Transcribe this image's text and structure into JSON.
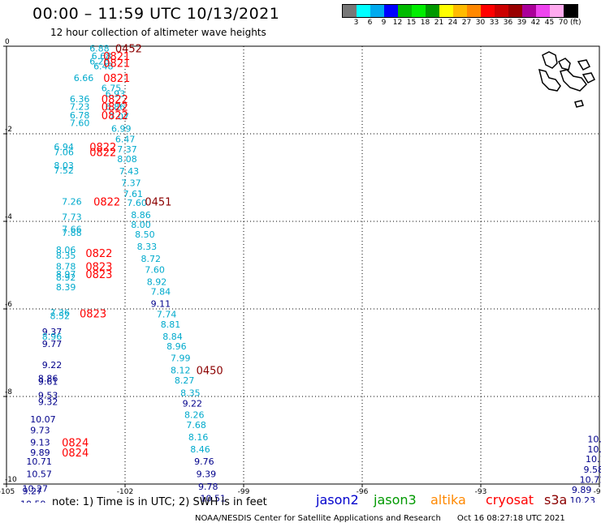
{
  "header": {
    "title": "00:00 – 11:59 UTC 10/13/2021",
    "subtitle": "12 hour collection of altimeter wave heights"
  },
  "scale": {
    "colors": [
      "#777777",
      "#00ffff",
      "#00aaee",
      "#0000ff",
      "#00bb00",
      "#00ee00",
      "#009900",
      "#ffff00",
      "#ffbb00",
      "#ff8800",
      "#ff0000",
      "#cc0000",
      "#990000",
      "#aa0099",
      "#ee44ee",
      "#ffaaee",
      "#000000"
    ],
    "labels": [
      "3",
      "6",
      "9",
      "12",
      "15",
      "18",
      "21",
      "24",
      "27",
      "30",
      "33",
      "36",
      "39",
      "42",
      "45",
      "70"
    ],
    "unit": "(ft)"
  },
  "chart_data": {
    "type": "scatter",
    "xlim": [
      -105,
      -90
    ],
    "ylim": [
      -10,
      0
    ],
    "x_ticks": [
      "-105",
      "-102",
      "-99",
      "-96",
      "-93",
      "-90"
    ],
    "y_ticks": [
      "0",
      "-2",
      "-4",
      "-6",
      "-8",
      "-10"
    ],
    "grid": true,
    "colors": {
      "jason2": "#00008b",
      "jason3": "#00aa00",
      "altika": "#ff8800",
      "cryosat": "#ff0000",
      "s3a": "#8b0000",
      "cyan": "#00aacc"
    },
    "swh_points": [
      {
        "lon": -102.9,
        "lat": -0.05,
        "v": "6.88",
        "c": "cyan"
      },
      {
        "lon": -102.85,
        "lat": -0.22,
        "v": "6.68",
        "c": "cyan"
      },
      {
        "lon": -102.9,
        "lat": -0.34,
        "v": "6.26",
        "c": "cyan"
      },
      {
        "lon": -102.8,
        "lat": -0.45,
        "v": "6.48",
        "c": "cyan"
      },
      {
        "lon": -103.3,
        "lat": -0.72,
        "v": "6.66",
        "c": "cyan"
      },
      {
        "lon": -102.6,
        "lat": -0.95,
        "v": "6.75",
        "c": "cyan"
      },
      {
        "lon": -103.4,
        "lat": -1.2,
        "v": "6.36",
        "c": "cyan"
      },
      {
        "lon": -102.5,
        "lat": -1.08,
        "v": "6.93",
        "c": "cyan"
      },
      {
        "lon": -103.4,
        "lat": -1.38,
        "v": "7.23",
        "c": "cyan"
      },
      {
        "lon": -103.4,
        "lat": -1.57,
        "v": "6.78",
        "c": "cyan"
      },
      {
        "lon": -102.5,
        "lat": -1.38,
        "v": "6.86",
        "c": "cyan"
      },
      {
        "lon": -102.4,
        "lat": -1.6,
        "v": "7.07",
        "c": "cyan"
      },
      {
        "lon": -103.4,
        "lat": -1.75,
        "v": "7.60",
        "c": "cyan"
      },
      {
        "lon": -102.35,
        "lat": -1.88,
        "v": "6.99",
        "c": "cyan"
      },
      {
        "lon": -102.25,
        "lat": -2.12,
        "v": "6.47",
        "c": "cyan"
      },
      {
        "lon": -103.8,
        "lat": -2.3,
        "v": "6.94",
        "c": "cyan"
      },
      {
        "lon": -103.8,
        "lat": -2.42,
        "v": "7.06",
        "c": "cyan"
      },
      {
        "lon": -102.2,
        "lat": -2.35,
        "v": "7.37",
        "c": "cyan"
      },
      {
        "lon": -102.2,
        "lat": -2.57,
        "v": "8.08",
        "c": "cyan"
      },
      {
        "lon": -103.8,
        "lat": -2.72,
        "v": "8.03",
        "c": "cyan"
      },
      {
        "lon": -103.8,
        "lat": -2.83,
        "v": "7.52",
        "c": "cyan"
      },
      {
        "lon": -102.15,
        "lat": -2.85,
        "v": "7.43",
        "c": "cyan"
      },
      {
        "lon": -102.1,
        "lat": -3.12,
        "v": "7.37",
        "c": "cyan"
      },
      {
        "lon": -102.05,
        "lat": -3.37,
        "v": "7.61",
        "c": "cyan"
      },
      {
        "lon": -103.6,
        "lat": -3.55,
        "v": "7.26",
        "c": "cyan"
      },
      {
        "lon": -101.95,
        "lat": -3.57,
        "v": "7.60",
        "c": "cyan"
      },
      {
        "lon": -101.85,
        "lat": -3.85,
        "v": "8.86",
        "c": "cyan"
      },
      {
        "lon": -103.6,
        "lat": -3.9,
        "v": "7.73",
        "c": "cyan"
      },
      {
        "lon": -101.85,
        "lat": -4.07,
        "v": "8.00",
        "c": "cyan"
      },
      {
        "lon": -103.6,
        "lat": -4.18,
        "v": "7.66",
        "c": "cyan"
      },
      {
        "lon": -103.6,
        "lat": -4.26,
        "v": "7.88",
        "c": "cyan"
      },
      {
        "lon": -101.75,
        "lat": -4.3,
        "v": "8.50",
        "c": "cyan"
      },
      {
        "lon": -103.75,
        "lat": -4.65,
        "v": "8.06",
        "c": "cyan"
      },
      {
        "lon": -101.7,
        "lat": -4.57,
        "v": "8.33",
        "c": "cyan"
      },
      {
        "lon": -103.75,
        "lat": -4.78,
        "v": "8.35",
        "c": "cyan"
      },
      {
        "lon": -101.6,
        "lat": -4.85,
        "v": "8.72",
        "c": "cyan"
      },
      {
        "lon": -103.75,
        "lat": -5.03,
        "v": "8.78",
        "c": "cyan"
      },
      {
        "lon": -101.5,
        "lat": -5.1,
        "v": "7.60",
        "c": "cyan"
      },
      {
        "lon": -103.75,
        "lat": -5.2,
        "v": "8.97",
        "c": "cyan"
      },
      {
        "lon": -103.75,
        "lat": -5.28,
        "v": "8.92",
        "c": "cyan"
      },
      {
        "lon": -101.45,
        "lat": -5.38,
        "v": "8.92",
        "c": "cyan"
      },
      {
        "lon": -103.75,
        "lat": -5.5,
        "v": "8.39",
        "c": "cyan"
      },
      {
        "lon": -101.35,
        "lat": -5.6,
        "v": "7.84",
        "c": "cyan"
      },
      {
        "lon": -101.35,
        "lat": -5.88,
        "v": "9.11",
        "c": "jason2"
      },
      {
        "lon": -103.9,
        "lat": -6.08,
        "v": "7.36",
        "c": "cyan"
      },
      {
        "lon": -103.9,
        "lat": -6.16,
        "v": "8.52",
        "c": "cyan"
      },
      {
        "lon": -101.2,
        "lat": -6.12,
        "v": "7.74",
        "c": "cyan"
      },
      {
        "lon": -101.1,
        "lat": -6.35,
        "v": "8.81",
        "c": "cyan"
      },
      {
        "lon": -104.1,
        "lat": -6.52,
        "v": "9.37",
        "c": "jason2"
      },
      {
        "lon": -104.1,
        "lat": -6.63,
        "v": "8.96",
        "c": "cyan"
      },
      {
        "lon": -101.05,
        "lat": -6.63,
        "v": "8.84",
        "c": "cyan"
      },
      {
        "lon": -104.1,
        "lat": -6.8,
        "v": "9.77",
        "c": "jason2"
      },
      {
        "lon": -100.95,
        "lat": -6.85,
        "v": "8.96",
        "c": "cyan"
      },
      {
        "lon": -100.85,
        "lat": -7.12,
        "v": "7.99",
        "c": "cyan"
      },
      {
        "lon": -104.1,
        "lat": -7.28,
        "v": "9.22",
        "c": "jason2"
      },
      {
        "lon": -100.85,
        "lat": -7.4,
        "v": "8.12",
        "c": "cyan"
      },
      {
        "lon": -104.2,
        "lat": -7.58,
        "v": "8.86",
        "c": "jason2"
      },
      {
        "lon": -104.2,
        "lat": -7.66,
        "v": "9.61",
        "c": "jason2"
      },
      {
        "lon": -100.75,
        "lat": -7.63,
        "v": "8.27",
        "c": "cyan"
      },
      {
        "lon": -100.6,
        "lat": -7.92,
        "v": "8.35",
        "c": "cyan"
      },
      {
        "lon": -104.2,
        "lat": -7.97,
        "v": "9.53",
        "c": "jason2"
      },
      {
        "lon": -104.2,
        "lat": -8.12,
        "v": "9.32",
        "c": "jason2"
      },
      {
        "lon": -100.55,
        "lat": -8.16,
        "v": "9.22",
        "c": "jason2"
      },
      {
        "lon": -100.5,
        "lat": -8.42,
        "v": "8.26",
        "c": "cyan"
      },
      {
        "lon": -104.4,
        "lat": -8.52,
        "v": "10.07",
        "c": "jason2"
      },
      {
        "lon": -100.45,
        "lat": -8.65,
        "v": "7.68",
        "c": "cyan"
      },
      {
        "lon": -104.4,
        "lat": -8.77,
        "v": "9.73",
        "c": "jason2"
      },
      {
        "lon": -100.4,
        "lat": -8.93,
        "v": "8.16",
        "c": "cyan"
      },
      {
        "lon": -104.4,
        "lat": -9.05,
        "v": "9.13",
        "c": "jason2"
      },
      {
        "lon": -100.35,
        "lat": -9.2,
        "v": "8.46",
        "c": "cyan"
      },
      {
        "lon": -104.4,
        "lat": -9.28,
        "v": "9.89",
        "c": "jason2"
      },
      {
        "lon": -104.5,
        "lat": -9.48,
        "v": "10.71",
        "c": "jason2"
      },
      {
        "lon": -100.25,
        "lat": -9.48,
        "v": "9.76",
        "c": "jason2"
      },
      {
        "lon": -100.2,
        "lat": -9.77,
        "v": "9.39",
        "c": "jason2"
      },
      {
        "lon": -104.5,
        "lat": -9.77,
        "v": "10.57",
        "c": "jason2"
      },
      {
        "lon": -100.15,
        "lat": -10.06,
        "v": "9.78",
        "c": "jason2"
      },
      {
        "lon": -104.6,
        "lat": -10.1,
        "v": "10.27",
        "c": "jason2"
      },
      {
        "lon": -104.6,
        "lat": -10.16,
        "v": "9.27",
        "c": "jason2"
      },
      {
        "lon": -100.1,
        "lat": -10.32,
        "v": "10.51",
        "c": "jason2"
      },
      {
        "lon": -104.65,
        "lat": -10.45,
        "v": "10.59",
        "c": "jason2"
      },
      {
        "lon": -104.65,
        "lat": -10.5,
        "v": "10.48",
        "c": "jason2"
      },
      {
        "lon": -100.05,
        "lat": -10.61,
        "v": "10.33",
        "c": "jason2"
      },
      {
        "lon": -89.9,
        "lat": -8.5,
        "v": "9",
        "c": "jason2"
      },
      {
        "lon": -89.9,
        "lat": -8.72,
        "v": "10",
        "c": "jason2"
      },
      {
        "lon": -90.3,
        "lat": -8.97,
        "v": "10.",
        "c": "jason2"
      },
      {
        "lon": -90.3,
        "lat": -9.2,
        "v": "10.3",
        "c": "jason2"
      },
      {
        "lon": -90.35,
        "lat": -9.43,
        "v": "10.1",
        "c": "jason2"
      },
      {
        "lon": -90.4,
        "lat": -9.67,
        "v": "9.58",
        "c": "jason2"
      },
      {
        "lon": -90.5,
        "lat": -9.9,
        "v": "10.71",
        "c": "jason2"
      },
      {
        "lon": -90.7,
        "lat": -10.13,
        "v": "9.89",
        "c": "jason2"
      },
      {
        "lon": -90.75,
        "lat": -10.37,
        "v": "10.23",
        "c": "jason2"
      },
      {
        "lon": -90.85,
        "lat": -10.6,
        "v": "10.13",
        "c": "jason2"
      },
      {
        "lon": -90.9,
        "lat": -10.82,
        "v": "9.32",
        "c": "jason2"
      },
      {
        "lon": -90.05,
        "lat": -10.82,
        "v": "0",
        "c": "jason3"
      }
    ],
    "time_labels": [
      {
        "lon": -102.25,
        "lat": -0.05,
        "t": "0452",
        "c": "s3a"
      },
      {
        "lon": -102.55,
        "lat": -0.22,
        "t": "0821",
        "c": "cryosat"
      },
      {
        "lon": -102.55,
        "lat": -0.38,
        "t": "0821",
        "c": "cryosat"
      },
      {
        "lon": -102.55,
        "lat": -0.72,
        "t": "0821",
        "c": "cryosat"
      },
      {
        "lon": -102.6,
        "lat": -1.2,
        "t": "0822",
        "c": "cryosat"
      },
      {
        "lon": -102.6,
        "lat": -1.38,
        "t": "0822",
        "c": "cryosat"
      },
      {
        "lon": -102.6,
        "lat": -1.57,
        "t": "0822",
        "c": "cryosat"
      },
      {
        "lon": -102.9,
        "lat": -2.3,
        "t": "0822",
        "c": "cryosat"
      },
      {
        "lon": -102.9,
        "lat": -2.42,
        "t": "0822",
        "c": "cryosat"
      },
      {
        "lon": -102.8,
        "lat": -3.55,
        "t": "0822",
        "c": "cryosat"
      },
      {
        "lon": -101.5,
        "lat": -3.55,
        "t": "0451",
        "c": "s3a"
      },
      {
        "lon": -103.0,
        "lat": -4.72,
        "t": "0822",
        "c": "cryosat"
      },
      {
        "lon": -103.0,
        "lat": -5.03,
        "t": "0823",
        "c": "cryosat"
      },
      {
        "lon": -103.0,
        "lat": -5.2,
        "t": "0823",
        "c": "cryosat"
      },
      {
        "lon": -103.15,
        "lat": -6.1,
        "t": "0823",
        "c": "cryosat"
      },
      {
        "lon": -100.2,
        "lat": -7.4,
        "t": "0450",
        "c": "s3a"
      },
      {
        "lon": -103.6,
        "lat": -9.05,
        "t": "0824",
        "c": "cryosat"
      },
      {
        "lon": -103.6,
        "lat": -9.28,
        "t": "0824",
        "c": "cryosat"
      }
    ]
  },
  "note": "note: 1) Time is in UTC; 2) SWH is in feet",
  "legend": [
    {
      "name": "jason2",
      "color": "#0000cc"
    },
    {
      "name": "jason3",
      "color": "#009900"
    },
    {
      "name": "altika",
      "color": "#ff8800"
    },
    {
      "name": "cryosat",
      "color": "#ff0000"
    },
    {
      "name": "s3a",
      "color": "#8b0000"
    }
  ],
  "footer": {
    "credit": "NOAA/NESDIS Center for Satellite Applications and Research",
    "timestamp": "Oct 16 08:27:18 UTC 2021"
  }
}
